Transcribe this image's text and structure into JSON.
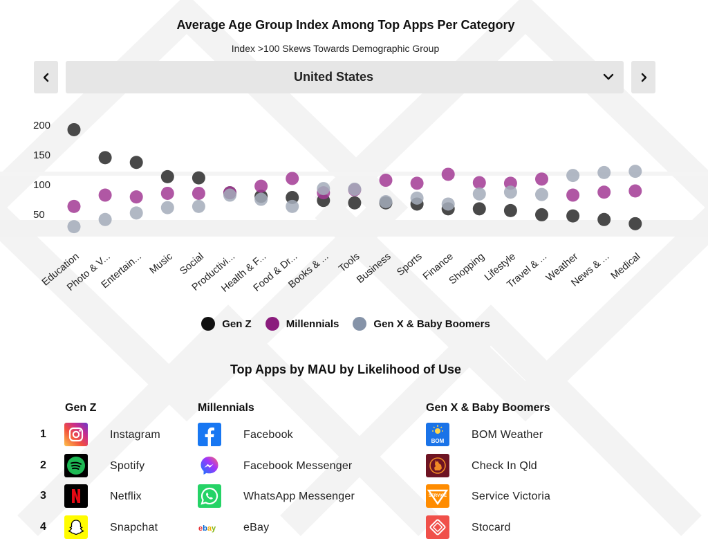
{
  "header": {
    "title": "Average Age Group Index Among Top Apps Per Category",
    "subtitle": "Index  >100 Skews Towards Demographic Group"
  },
  "selector": {
    "country": "United States",
    "prev_icon": "chevron-left-icon",
    "next_icon": "chevron-right-icon",
    "dropdown_icon": "chevron-down-icon"
  },
  "colors": {
    "gen_z": "#3a3a3a",
    "millennials": "#9b3a8e",
    "genx": "#9aa3b0",
    "panel": "#e6e6e6"
  },
  "chart_data": {
    "type": "scatter",
    "title": "Average Age Group Index Among Top Apps Per Category",
    "subtitle": "Index  >100 Skews Towards Demographic Group",
    "y_ticks": [
      "50",
      "100",
      "150",
      "200"
    ],
    "ylim": [
      20,
      210
    ],
    "grid": false,
    "legend_position": "bottom",
    "categories": [
      "Education",
      "Photo & V...",
      "Entertain...",
      "Music",
      "Social",
      "Productivi...",
      "Health & F...",
      "Food & Dr...",
      "Books & ...",
      "Tools",
      "Business",
      "Sports",
      "Finance",
      "Shopping",
      "Lifestyle",
      "Travel & ...",
      "Weather",
      "News & ...",
      "Medical"
    ],
    "series": [
      {
        "name": "Gen Z",
        "values": [
          196,
          149,
          141,
          117,
          115,
          90,
          84,
          82,
          77,
          73,
          73,
          71,
          63,
          63,
          60,
          53,
          51,
          45,
          38
        ]
      },
      {
        "name": "Millennials",
        "values": [
          67,
          86,
          83,
          89,
          89,
          90,
          101,
          114,
          90,
          95,
          111,
          106,
          121,
          107,
          106,
          113,
          86,
          91,
          93
        ]
      },
      {
        "name": "Gen X & Baby Boomers",
        "values": [
          33,
          45,
          56,
          65,
          67,
          86,
          79,
          67,
          97,
          96,
          75,
          81,
          71,
          88,
          91,
          87,
          119,
          124,
          126
        ]
      }
    ]
  },
  "legend": [
    {
      "label": "Gen Z",
      "color": "#111111"
    },
    {
      "label": "Millennials",
      "color": "#8a1c7c"
    },
    {
      "label": "Gen X & Baby Boomers",
      "color": "#8593a8"
    }
  ],
  "apps": {
    "title": "Top Apps by MAU by Likelihood of Use",
    "ranks": [
      "1",
      "2",
      "3",
      "4"
    ],
    "columns": [
      {
        "heading": "Gen Z",
        "items": [
          {
            "name": "Instagram",
            "icon": "instagram-icon",
            "color": "#d6297c"
          },
          {
            "name": "Spotify",
            "icon": "spotify-icon",
            "color": "#1db954"
          },
          {
            "name": "Netflix",
            "icon": "netflix-icon",
            "color": "#e50914"
          },
          {
            "name": "Snapchat",
            "icon": "snapchat-icon",
            "color": "#fffc00"
          }
        ]
      },
      {
        "heading": "Millennials",
        "items": [
          {
            "name": "Facebook",
            "icon": "facebook-icon",
            "color": "#1877f2"
          },
          {
            "name": "Facebook Messenger",
            "icon": "messenger-icon",
            "color": "#a334fa"
          },
          {
            "name": "WhatsApp Messenger",
            "icon": "whatsapp-icon",
            "color": "#25d366"
          },
          {
            "name": "eBay",
            "icon": "ebay-icon",
            "color": "#e53238"
          }
        ]
      },
      {
        "heading": "Gen X & Baby Boomers",
        "items": [
          {
            "name": "BOM Weather",
            "icon": "bom-weather-icon",
            "color": "#1a73e8",
            "logo_text": "BOM"
          },
          {
            "name": "Check In Qld",
            "icon": "check-in-qld-icon",
            "color": "#8b1c2c"
          },
          {
            "name": "Service Victoria",
            "icon": "service-victoria-icon",
            "color": "#ff8c00",
            "logo_text": "SERVICE"
          },
          {
            "name": "Stocard",
            "icon": "stocard-icon",
            "color": "#f0504a"
          }
        ]
      }
    ]
  }
}
